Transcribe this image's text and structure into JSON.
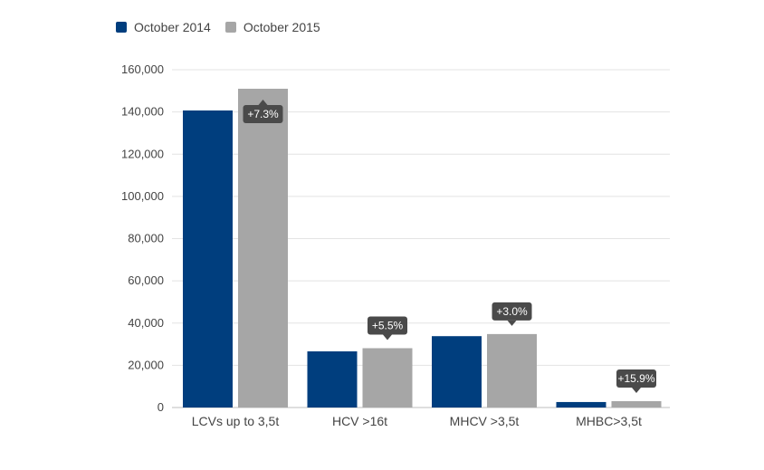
{
  "chart_data": {
    "type": "bar",
    "categories": [
      "LCVs up to 3,5t",
      "HCV >16t",
      "MHCV >3,5t",
      "MHBC>3,5t"
    ],
    "series": [
      {
        "name": "October 2014",
        "color": "#003e7e",
        "values": [
          140700,
          26600,
          33800,
          2600
        ]
      },
      {
        "name": "October 2015",
        "color": "#a6a6a6",
        "values": [
          151000,
          28100,
          34800,
          3000
        ]
      }
    ],
    "change_labels": [
      "+7.3%",
      "+5.5%",
      "+3.0%",
      "+15.9%"
    ],
    "ylim": [
      0,
      160000
    ],
    "yticks": [
      0,
      20000,
      40000,
      60000,
      80000,
      100000,
      120000,
      140000,
      160000
    ],
    "ytick_labels": [
      "0",
      "20,000",
      "40,000",
      "60,000",
      "80,000",
      "100,000",
      "120,000",
      "140,000",
      "160,000"
    ],
    "grid": true,
    "legend_position": "top-left",
    "callout_color": "#4a4a4a"
  }
}
